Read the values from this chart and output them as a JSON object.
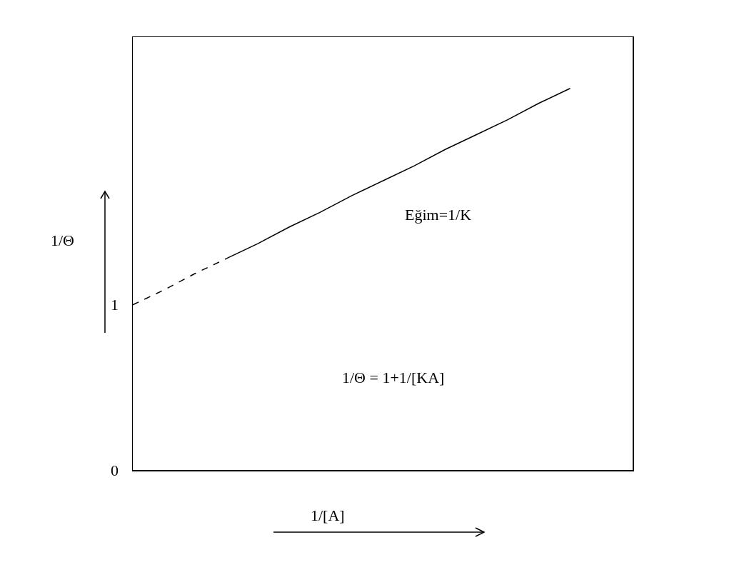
{
  "chart_data": {
    "type": "line",
    "xlabel": "1/[A]",
    "ylabel": "1/Θ",
    "categories": [
      null,
      null,
      null,
      null,
      null,
      null,
      null,
      null,
      null,
      null,
      null,
      null,
      null,
      null,
      null,
      null,
      null
    ],
    "series": [
      {
        "color": "#000000",
        "line_style": "dashed",
        "values": [
          1,
          1.09,
          1.19,
          1.28,
          null,
          null,
          null,
          null,
          null,
          null,
          null,
          null,
          null,
          null,
          null,
          null,
          null
        ]
      },
      {
        "color": "#000000",
        "line_style": "solid",
        "values": [
          null,
          null,
          null,
          1.28,
          1.37,
          1.47,
          1.56,
          1.66,
          1.75,
          1.84,
          1.94,
          2.03,
          2.12,
          2.22,
          2.31,
          null,
          null
        ]
      }
    ],
    "ylim": [
      0,
      2.62
    ],
    "yticks": [
      0,
      1
    ],
    "tick_labels": "y",
    "grid": false,
    "marker": "none",
    "annotations": [
      "Eğim=1/K",
      "1/Θ = 1+1/[KA]"
    ]
  }
}
